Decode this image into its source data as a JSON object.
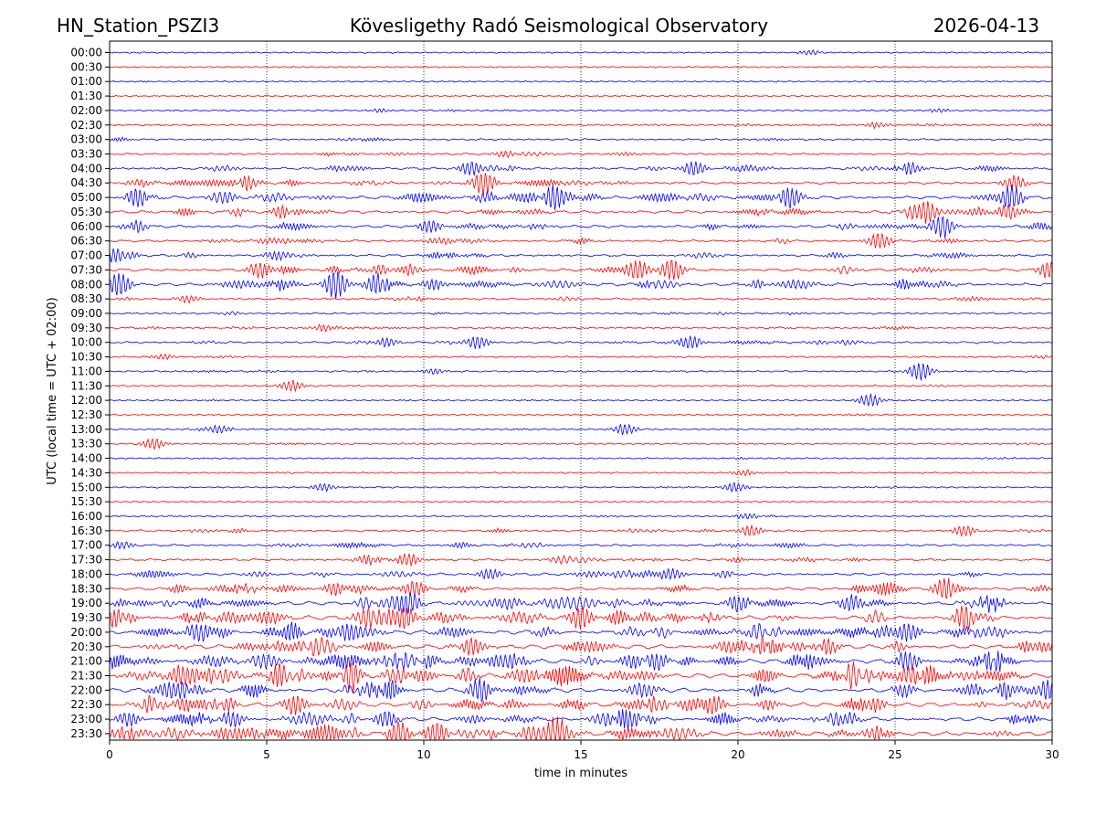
{
  "chart_data": {
    "type": "line",
    "station": "HN_Station_PSZI3",
    "title": "Kövesligethy Radó Seismological Observatory",
    "date": "2026-04-13",
    "xlabel": "time in minutes",
    "ylabel": "UTC (local time = UTC + 02:00)",
    "xlim": [
      0,
      30
    ],
    "x_ticks": [
      0,
      5,
      10,
      15,
      20,
      25,
      30
    ],
    "x_gridlines": [
      5,
      10,
      15,
      20,
      25
    ],
    "trace_colors": [
      "#0000ff",
      "#ff0000"
    ],
    "rows": [
      {
        "label": "00:00",
        "activity": 0.05,
        "events": [
          [
            22.3,
            0.25
          ]
        ]
      },
      {
        "label": "00:30",
        "activity": 0.03,
        "events": []
      },
      {
        "label": "01:00",
        "activity": 0.04,
        "events": []
      },
      {
        "label": "01:30",
        "activity": 0.05,
        "events": []
      },
      {
        "label": "02:00",
        "activity": 0.1,
        "events": [
          [
            8.6,
            0.2
          ],
          [
            26.4,
            0.2
          ]
        ]
      },
      {
        "label": "02:30",
        "activity": 0.14,
        "events": [
          [
            24.4,
            0.3
          ]
        ]
      },
      {
        "label": "03:00",
        "activity": 0.18,
        "events": []
      },
      {
        "label": "03:30",
        "activity": 0.22,
        "events": [
          [
            12.6,
            0.35
          ]
        ]
      },
      {
        "label": "04:00",
        "activity": 0.35,
        "events": [
          [
            11.5,
            0.8
          ],
          [
            18.6,
            0.8
          ],
          [
            25.5,
            0.6
          ]
        ]
      },
      {
        "label": "04:30",
        "activity": 0.4,
        "events": [
          [
            4.4,
            0.7
          ],
          [
            11.9,
            1.3
          ],
          [
            28.8,
            0.8
          ]
        ]
      },
      {
        "label": "05:00",
        "activity": 0.55,
        "events": [
          [
            0.9,
            1.1
          ],
          [
            14.1,
            1.1
          ],
          [
            21.6,
            1.0
          ],
          [
            28.7,
            1.3
          ]
        ]
      },
      {
        "label": "05:30",
        "activity": 0.5,
        "events": [
          [
            5.5,
            0.6
          ],
          [
            26.0,
            1.2
          ],
          [
            28.6,
            0.8
          ]
        ]
      },
      {
        "label": "06:00",
        "activity": 0.45,
        "events": [
          [
            0.8,
            0.6
          ],
          [
            10.2,
            0.7
          ],
          [
            26.5,
            0.9
          ]
        ]
      },
      {
        "label": "06:30",
        "activity": 0.35,
        "events": [
          [
            24.5,
            0.9
          ]
        ]
      },
      {
        "label": "07:00",
        "activity": 0.35,
        "events": [
          [
            0.2,
            0.6
          ],
          [
            5.3,
            0.5
          ]
        ]
      },
      {
        "label": "07:30",
        "activity": 0.45,
        "events": [
          [
            4.8,
            0.9
          ],
          [
            16.8,
            1.1
          ],
          [
            17.9,
            1.2
          ],
          [
            29.9,
            0.9
          ]
        ]
      },
      {
        "label": "08:00",
        "activity": 0.5,
        "events": [
          [
            0.3,
            1.3
          ],
          [
            7.2,
            1.6
          ],
          [
            8.5,
            1.1
          ],
          [
            10.3,
            0.6
          ]
        ]
      },
      {
        "label": "08:30",
        "activity": 0.25,
        "events": [
          [
            2.5,
            0.4
          ]
        ]
      },
      {
        "label": "09:00",
        "activity": 0.2,
        "events": []
      },
      {
        "label": "09:30",
        "activity": 0.2,
        "events": [
          [
            6.9,
            0.4
          ]
        ]
      },
      {
        "label": "10:00",
        "activity": 0.28,
        "events": [
          [
            8.8,
            0.5
          ],
          [
            11.7,
            0.7
          ],
          [
            18.5,
            0.7
          ]
        ]
      },
      {
        "label": "10:30",
        "activity": 0.15,
        "events": [
          [
            1.7,
            0.3
          ]
        ]
      },
      {
        "label": "11:00",
        "activity": 0.15,
        "events": [
          [
            10.3,
            0.3
          ],
          [
            25.8,
            1.0
          ]
        ]
      },
      {
        "label": "11:30",
        "activity": 0.12,
        "events": [
          [
            5.8,
            0.6
          ]
        ]
      },
      {
        "label": "12:00",
        "activity": 0.06,
        "events": [
          [
            24.2,
            0.7
          ]
        ]
      },
      {
        "label": "12:30",
        "activity": 0.08,
        "events": []
      },
      {
        "label": "13:00",
        "activity": 0.12,
        "events": [
          [
            3.5,
            0.4
          ],
          [
            16.4,
            0.6
          ]
        ]
      },
      {
        "label": "13:30",
        "activity": 0.12,
        "events": [
          [
            1.4,
            0.6
          ]
        ]
      },
      {
        "label": "14:00",
        "activity": 0.08,
        "events": []
      },
      {
        "label": "14:30",
        "activity": 0.08,
        "events": [
          [
            20.2,
            0.3
          ]
        ]
      },
      {
        "label": "15:00",
        "activity": 0.08,
        "events": [
          [
            6.8,
            0.4
          ],
          [
            19.9,
            0.5
          ]
        ]
      },
      {
        "label": "15:30",
        "activity": 0.06,
        "events": []
      },
      {
        "label": "16:00",
        "activity": 0.1,
        "events": [
          [
            20.3,
            0.3
          ]
        ]
      },
      {
        "label": "16:30",
        "activity": 0.25,
        "events": [
          [
            20.4,
            0.6
          ],
          [
            27.2,
            0.6
          ]
        ]
      },
      {
        "label": "17:00",
        "activity": 0.3,
        "events": [
          [
            0.4,
            0.4
          ]
        ]
      },
      {
        "label": "17:30",
        "activity": 0.3,
        "events": [
          [
            8.2,
            0.5
          ],
          [
            9.5,
            0.7
          ]
        ]
      },
      {
        "label": "18:00",
        "activity": 0.4,
        "events": [
          [
            12.1,
            0.6
          ],
          [
            17.9,
            0.6
          ]
        ]
      },
      {
        "label": "18:30",
        "activity": 0.5,
        "events": [
          [
            7.2,
            0.8
          ],
          [
            9.7,
            0.9
          ],
          [
            26.6,
            1.2
          ]
        ]
      },
      {
        "label": "19:00",
        "activity": 0.7,
        "events": [
          [
            9.5,
            1.3
          ],
          [
            20.0,
            0.9
          ],
          [
            23.6,
            0.9
          ]
        ]
      },
      {
        "label": "19:30",
        "activity": 0.8,
        "events": [
          [
            0.5,
            0.9
          ],
          [
            9.4,
            1.2
          ],
          [
            15.0,
            1.3
          ],
          [
            27.2,
            1.0
          ]
        ]
      },
      {
        "label": "20:00",
        "activity": 0.8,
        "events": [
          [
            2.8,
            1.0
          ],
          [
            7.5,
            1.1
          ],
          [
            25.3,
            1.0
          ]
        ]
      },
      {
        "label": "20:30",
        "activity": 0.75,
        "events": [
          [
            11.4,
            0.9
          ],
          [
            22.8,
            1.0
          ]
        ]
      },
      {
        "label": "21:00",
        "activity": 0.8,
        "events": [
          [
            17.4,
            1.0
          ],
          [
            25.4,
            1.1
          ],
          [
            28.1,
            0.9
          ]
        ]
      },
      {
        "label": "21:30",
        "activity": 0.85,
        "events": [
          [
            2.3,
            1.3
          ],
          [
            5.4,
            1.1
          ],
          [
            7.7,
            1.2
          ],
          [
            25.5,
            1.1
          ]
        ]
      },
      {
        "label": "22:00",
        "activity": 0.8,
        "events": [
          [
            2.1,
            1.0
          ],
          [
            11.8,
            1.3
          ],
          [
            29.8,
            1.1
          ]
        ]
      },
      {
        "label": "22:30",
        "activity": 0.75,
        "events": [
          [
            5.9,
            1.1
          ],
          [
            19.2,
            1.0
          ],
          [
            24.3,
            0.9
          ]
        ]
      },
      {
        "label": "23:00",
        "activity": 0.7,
        "events": [
          [
            0.6,
            0.8
          ],
          [
            3.9,
            0.9
          ],
          [
            8.8,
            0.9
          ]
        ]
      },
      {
        "label": "23:30",
        "activity": 0.8,
        "events": [
          [
            9.2,
            1.3
          ],
          [
            10.4,
            1.3
          ],
          [
            14.2,
            1.5
          ]
        ]
      }
    ]
  }
}
